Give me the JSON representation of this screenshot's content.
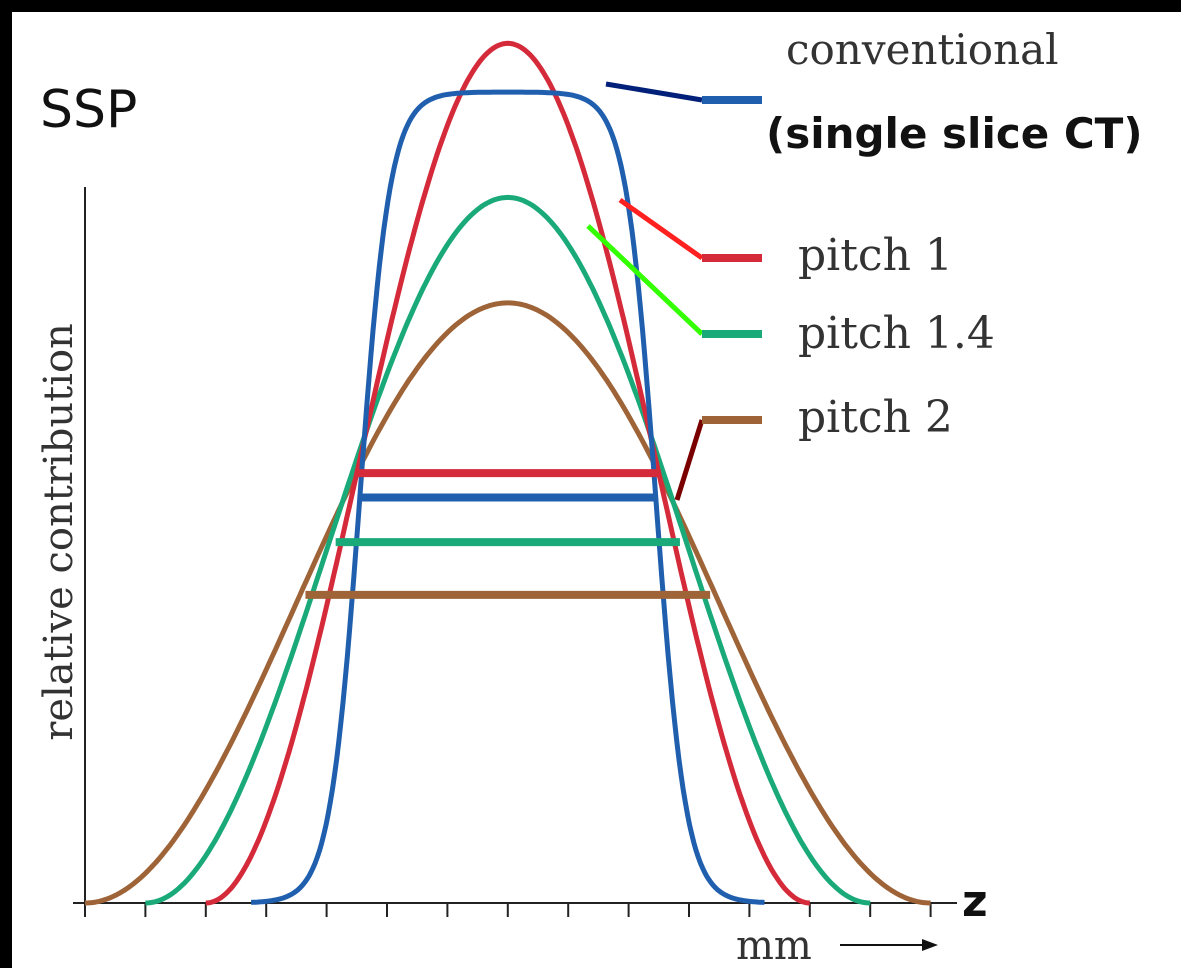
{
  "chart_data": {
    "type": "line",
    "title": "SSP",
    "ylabel": "relative contribution",
    "xlabel": "mm",
    "axis_end_label": "z",
    "x_tick_count": 15,
    "legend_placement": "right",
    "series": [
      {
        "name": "conventional\n(single slice CT)",
        "color": "#1f5fae",
        "label_line1": "conventional",
        "label_line2": "(single slice CT)",
        "profile": {
          "center": 7,
          "half_width": 2.45,
          "edge_softness": 0.25,
          "peak": 1.0,
          "shape": "flat-top"
        },
        "fwhm_bar_half_width": 2.45,
        "fwhm_bar_level": 0.5
      },
      {
        "name": "pitch 1",
        "color": "#d42a3a",
        "profile": {
          "center": 7,
          "support": [
            2,
            12
          ],
          "peak": 1.06,
          "shape": "smooth-bump"
        },
        "fwhm_bar_half_width": 2.5,
        "fwhm_bar_level": 0.53
      },
      {
        "name": "pitch 1.4",
        "color": "#1aaa7a",
        "profile": {
          "center": 7,
          "support": [
            1,
            13
          ],
          "peak": 0.87,
          "shape": "smooth-bump"
        },
        "fwhm_bar_half_width": 2.85,
        "fwhm_bar_level": 0.445
      },
      {
        "name": "pitch 2",
        "color": "#9e6438",
        "profile": {
          "center": 7,
          "support": [
            0,
            14
          ],
          "peak": 0.74,
          "shape": "smooth-bump"
        },
        "fwhm_bar_half_width": 3.35,
        "fwhm_bar_level": 0.38
      }
    ],
    "leader_colors": [
      "#00207a",
      "#ff2020",
      "#33ff00",
      "#7a0000"
    ],
    "xlim": [
      -0.1,
      14.5
    ],
    "ylim": [
      0,
      1.1
    ],
    "grid": false
  }
}
